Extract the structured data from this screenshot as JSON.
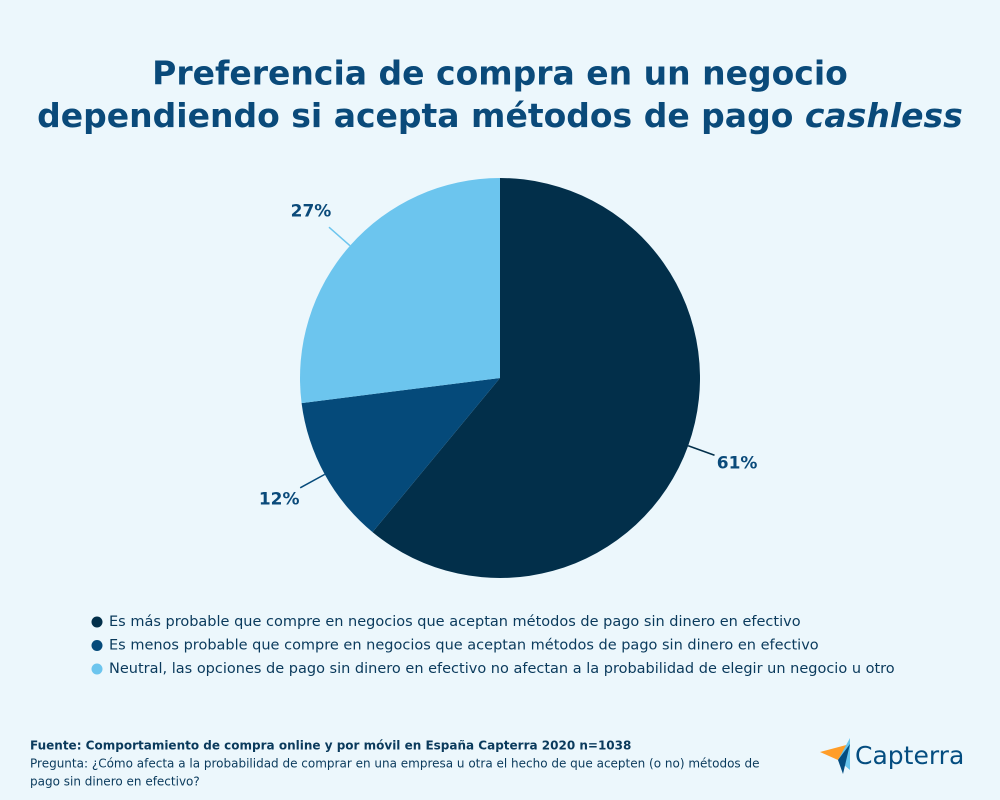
{
  "chart_data": {
    "type": "pie",
    "title": [
      "Preferencia de compra en un negocio",
      "dependiendo si acepta métodos de pago"
    ],
    "title_emphasis": "cashless",
    "categories": [
      "Es más probable que compre en negocios que aceptan métodos de pago sin dinero en efectivo",
      "Es menos probable que compre en negocios que aceptan métodos de pago sin dinero en efectivo",
      "Neutral, las opciones de pago sin dinero en efectivo no afectan a la probabilidad de elegir un negocio u otro"
    ],
    "values": [
      61,
      12,
      27
    ],
    "value_labels": [
      "61%",
      "12%",
      "27%"
    ],
    "colors": [
      "#022f4a",
      "#054a7a",
      "#6cc5ee"
    ],
    "source": "Fuente: Comportamiento de compra online y por móvil en España Capterra 2020 n=1038",
    "question": [
      "Pregunta: ¿Cómo afecta a la probabilidad de comprar en una empresa u otra el hecho de que acepten (o no) métodos de",
      "pago sin dinero en efectivo?"
    ],
    "brand": "Capterra"
  }
}
